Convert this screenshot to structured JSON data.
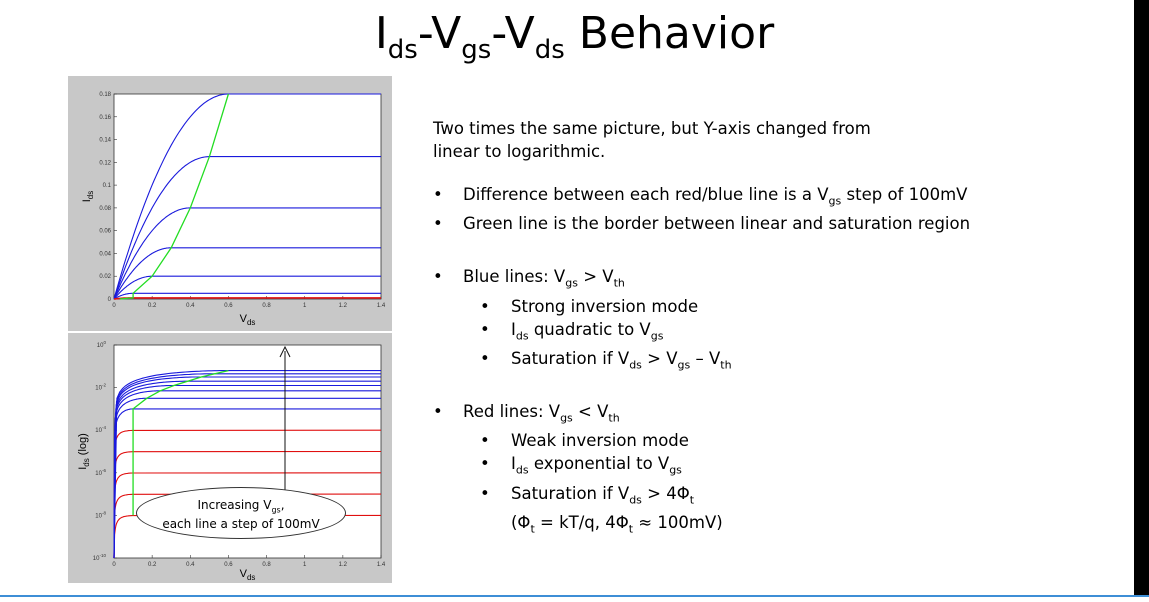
{
  "title": {
    "main": "I",
    "sub1": "ds",
    "sep1": "-V",
    "sub2": "gs",
    "sep2": "-V",
    "sub3": "ds",
    "tail": " Behavior"
  },
  "chart_data": [
    {
      "type": "line",
      "scale": "linear",
      "xlabel_main": "V",
      "xlabel_sub": "ds",
      "ylabel_main": "I",
      "ylabel_sub": "ds",
      "xlim": [
        0,
        1.4
      ],
      "ylim": [
        0,
        0.18
      ],
      "xticks": [
        "0",
        "0.2",
        "0.4",
        "0.6",
        "0.8",
        "1",
        "1.2",
        "1.4"
      ],
      "yticks": [
        "0",
        "0.02",
        "0.04",
        "0.06",
        "0.08",
        "0.1",
        "0.12",
        "0.14",
        "0.16",
        "0.18"
      ],
      "series": [
        {
          "color": "#1a1adc",
          "saturation": 0.18,
          "vdsat": 0.6
        },
        {
          "color": "#1a1adc",
          "saturation": 0.125,
          "vdsat": 0.5
        },
        {
          "color": "#1a1adc",
          "saturation": 0.08,
          "vdsat": 0.4
        },
        {
          "color": "#1a1adc",
          "saturation": 0.045,
          "vdsat": 0.3
        },
        {
          "color": "#1a1adc",
          "saturation": 0.02,
          "vdsat": 0.2
        },
        {
          "color": "#1a1adc",
          "saturation": 0.005,
          "vdsat": 0.1
        },
        {
          "color": "#e01010",
          "saturation": 0.001,
          "vdsat": 0.1
        }
      ],
      "border_color": "#22dd22"
    },
    {
      "type": "line",
      "scale": "log",
      "xlabel_main": "V",
      "xlabel_sub": "ds",
      "ylabel_main": "I",
      "ylabel_sub": "ds",
      "ylabel_tail": " (log)",
      "xlim": [
        0,
        1.4
      ],
      "ylim_exp": [
        -10,
        0
      ],
      "xticks": [
        "0",
        "0.2",
        "0.4",
        "0.6",
        "0.8",
        "1",
        "1.2",
        "1.4"
      ],
      "yticks_exp": [
        0,
        -2,
        -4,
        -6,
        -8,
        -10
      ],
      "ytick_base": "10",
      "blue_log_levels": [
        -1.2,
        -1.35,
        -1.5,
        -1.7,
        -1.9,
        -2.15,
        -2.5,
        -3.0
      ],
      "red_log_levels": [
        -4.0,
        -5.0,
        -6.0,
        -7.0,
        -8.0
      ],
      "blue_color": "#1a1adc",
      "red_color": "#e01010",
      "border_color": "#22dd22"
    }
  ],
  "annotation": {
    "line1_main": "Increasing V",
    "line1_sub": "gs",
    "line1_tail": ",",
    "line2": "each line a step of 100mV"
  },
  "text": {
    "intro": "Two times the same picture, but Y-axis changed from linear to logarithmic.",
    "diff_pre": "Difference between each red/blue line is a V",
    "diff_sub": "gs",
    "diff_post": " step of 100mV",
    "green": "Green line is the border between linear and saturation region",
    "blue_v": "Blue lines: V",
    "blue_gs": "gs",
    "blue_gt": " > V",
    "blue_th": "th",
    "strong": "Strong inversion mode",
    "quad_i": "I",
    "quad_ds": "ds",
    "quad_mid": " quadratic to V",
    "quad_gs": "gs",
    "sat1_pre": "Saturation if V",
    "sat1_ds": "ds",
    "sat1_mid": " > V",
    "sat1_gs": "gs",
    "sat1_mid2": " – V",
    "sat1_th": "th",
    "red_v": "Red lines: V",
    "red_gs": "gs",
    "red_lt": " < V",
    "red_th": "th",
    "weak": "Weak inversion mode",
    "exp_i": "I",
    "exp_ds": "ds",
    "exp_mid": " exponential to V",
    "exp_gs": "gs",
    "sat2_pre": "Saturation if V",
    "sat2_ds": "ds",
    "sat2_mid": " > 4Φ",
    "sat2_t": "t",
    "phi_a": "(Φ",
    "phi_t1": "t",
    "phi_b": " = kT/q, 4Φ",
    "phi_t2": "t",
    "phi_c": " ≈ 100mV)"
  }
}
